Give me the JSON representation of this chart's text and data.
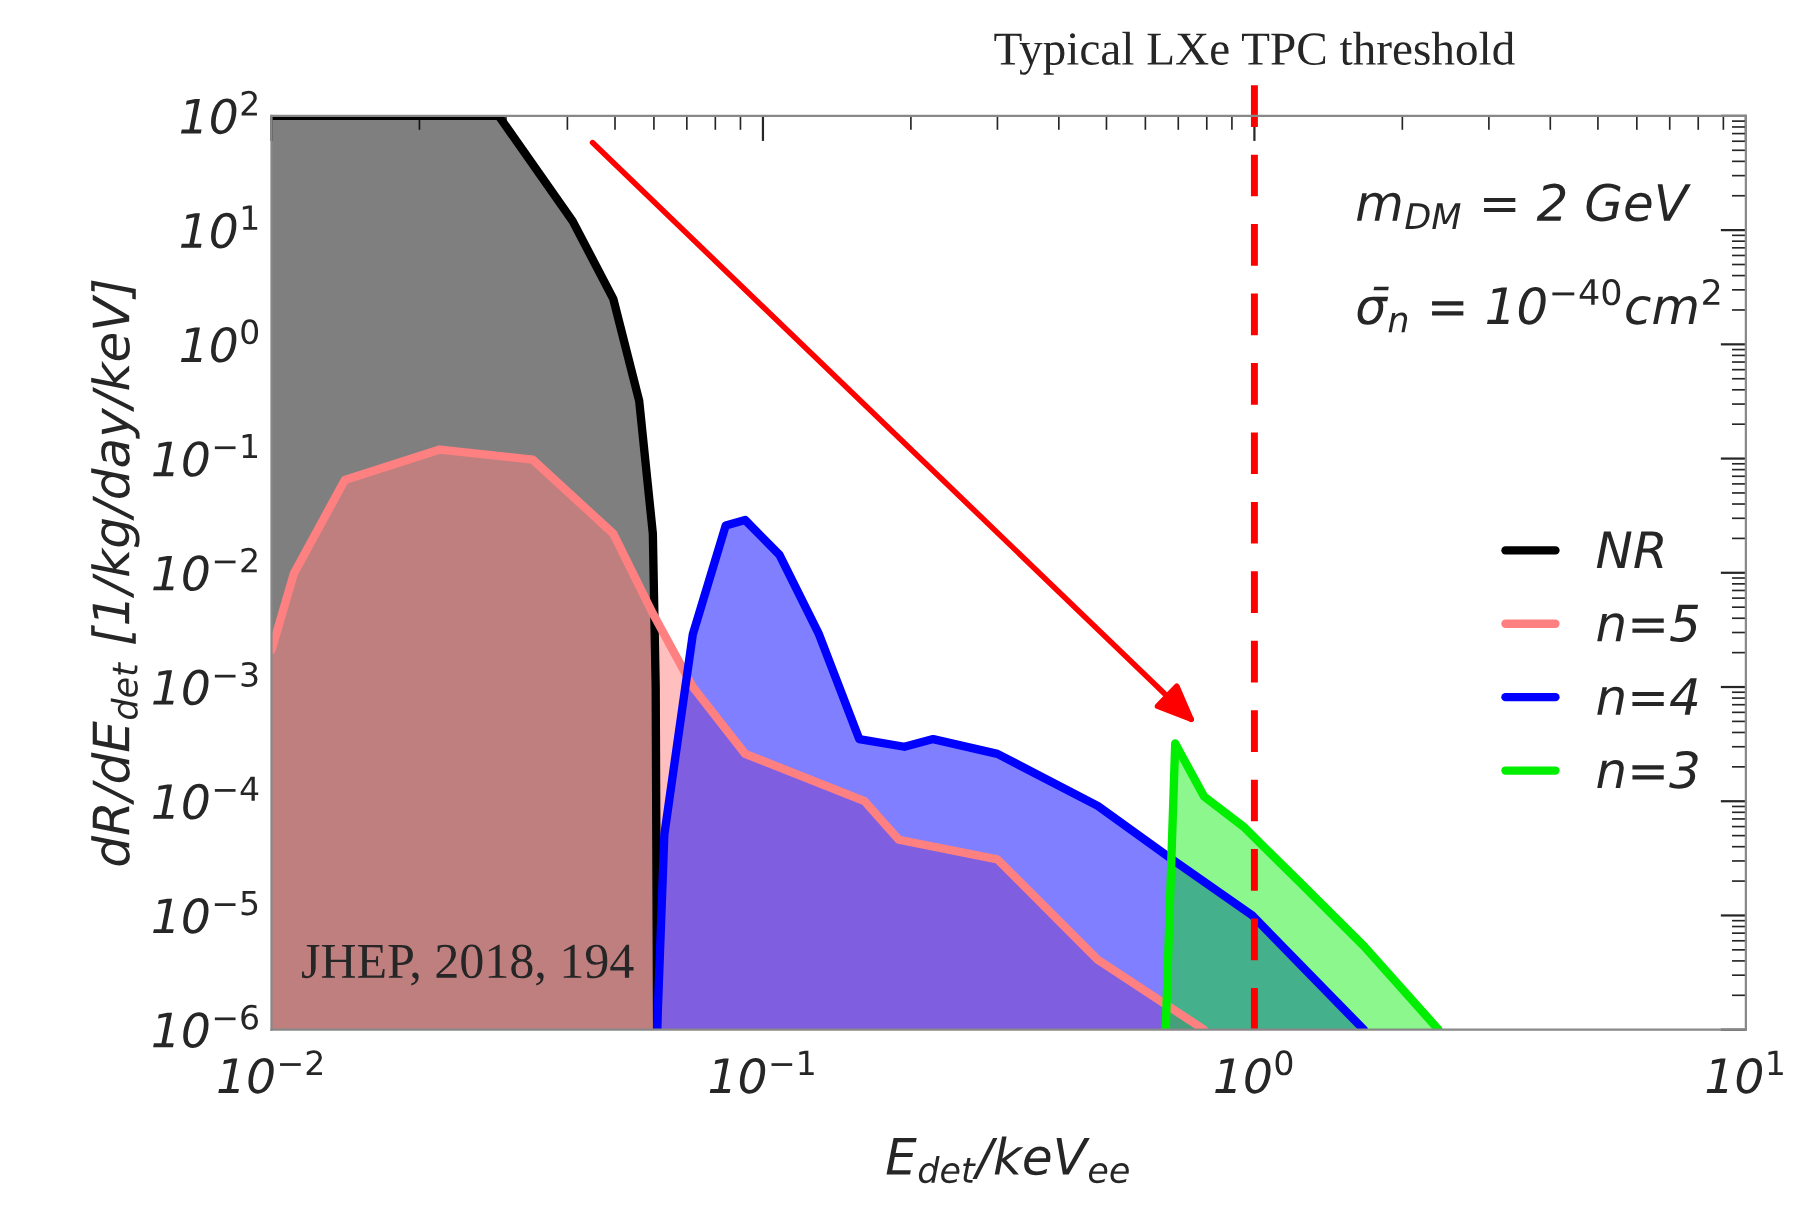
{
  "chart_data": {
    "type": "area",
    "xlabel": "E$_{det}$/keV$_{ee}$",
    "ylabel": "dR/dE$_{det}$ [1/kg/day/keV]",
    "log": "xy",
    "grid": false,
    "legend": "right",
    "xlim": [
      0.01,
      10
    ],
    "ylim": [
      1e-06,
      100
    ],
    "xticks": [
      {
        "value": 0.01,
        "label": "10$^{−2}$"
      },
      {
        "value": 0.1,
        "label": "10$^{−1}$"
      },
      {
        "value": 1,
        "label": "10$^{0}$"
      },
      {
        "value": 10,
        "label": "10$^{1}$"
      }
    ],
    "yticks": [
      {
        "value": 1e-06,
        "label": "10$^{−6}$"
      },
      {
        "value": 1e-05,
        "label": "10$^{−5}$"
      },
      {
        "value": 0.0001,
        "label": "10$^{−4}$"
      },
      {
        "value": 0.001,
        "label": "10$^{−3}$"
      },
      {
        "value": 0.01,
        "label": "10$^{−2}$"
      },
      {
        "value": 0.1,
        "label": "10$^{−1}$"
      },
      {
        "value": 1,
        "label": "10$^{0}$"
      },
      {
        "value": 10,
        "label": "10$^{1}$"
      },
      {
        "value": 100,
        "label": "10$^{2}$"
      }
    ],
    "series": [
      {
        "name": "NR",
        "color": "#000000",
        "x": [
          0.01,
          0.029,
          0.041,
          0.0496,
          0.056,
          0.0597,
          0.0605,
          0.0609
        ],
        "values": [
          100,
          100,
          12,
          2.5,
          0.32,
          0.022,
          0.001,
          1e-06
        ]
      },
      {
        "name": "n=5",
        "color": "#ff8080",
        "x": [
          0.01,
          0.0111,
          0.0141,
          0.022,
          0.034,
          0.0496,
          0.0597,
          0.072,
          0.092,
          0.161,
          0.189,
          0.3,
          0.48,
          0.79
        ],
        "values": [
          0.0021,
          0.0098,
          0.065,
          0.12,
          0.098,
          0.022,
          0.0044,
          0.001,
          0.00026,
          0.0001,
          4.6e-05,
          3.1e-05,
          4.1e-06,
          1e-06
        ]
      },
      {
        "name": "n=4",
        "color": "#0000ff",
        "x": [
          0.0609,
          0.063,
          0.072,
          0.084,
          0.092,
          0.108,
          0.13,
          0.157,
          0.194,
          0.222,
          0.3,
          0.48,
          0.68,
          0.99,
          1.67
        ],
        "values": [
          1e-06,
          5.1e-05,
          0.0029,
          0.026,
          0.029,
          0.0144,
          0.0029,
          0.00035,
          0.0003,
          0.00035,
          0.00026,
          9.1e-05,
          3.1e-05,
          1e-05,
          1e-06
        ]
      },
      {
        "name": "n=3",
        "color": "#00ee00",
        "x": [
          0.66,
          0.69,
          0.79,
          0.95,
          1.23,
          1.67,
          2.37
        ],
        "values": [
          1e-06,
          0.00032,
          0.00011,
          6e-05,
          2e-05,
          5.4e-06,
          1e-06
        ]
      }
    ],
    "ref_lines": [
      {
        "axis": "x",
        "value": 1,
        "label": "Typical LXe TPC threshold",
        "color": "#ff0000",
        "line_style": "dashed"
      }
    ],
    "annotations": [
      "m$_{DM}$ = 2 GeV",
      "σ̄$_{n}$ = 10$^{−40}$cm$^{2}$",
      "JHEP, 2018, 194"
    ]
  }
}
